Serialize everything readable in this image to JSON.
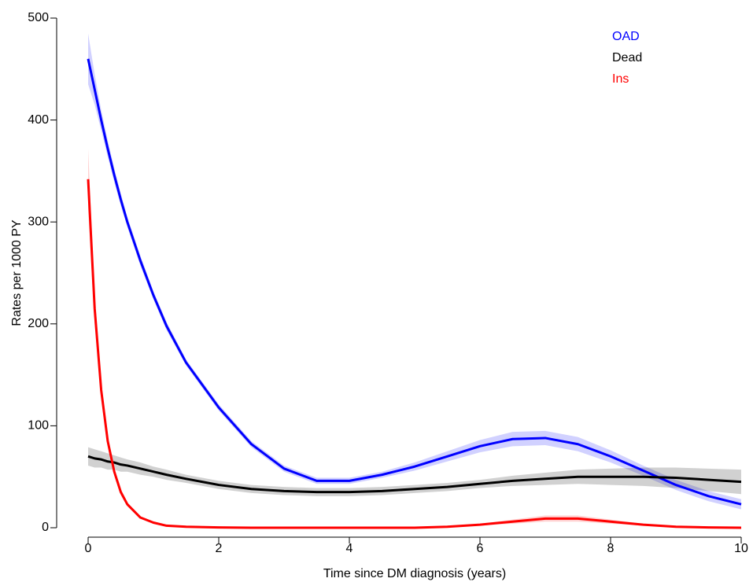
{
  "chart_data": {
    "type": "line",
    "x_label": "Time since DM diagnosis (years)",
    "y_label": "Rates per 1000 PY",
    "x": [
      0,
      0.1,
      0.2,
      0.3,
      0.4,
      0.5,
      0.6,
      0.8,
      1,
      1.2,
      1.5,
      2,
      2.5,
      3,
      3.5,
      4,
      4.5,
      5,
      5.5,
      6,
      6.5,
      7,
      7.5,
      8,
      8.5,
      9,
      9.5,
      10
    ],
    "series": [
      {
        "name": "OAD",
        "color": "#0000ff",
        "values": [
          460,
          430,
          400,
          372,
          346,
          322,
          300,
          262,
          228,
          198,
          162,
          118,
          82,
          58,
          46,
          46,
          52,
          60,
          70,
          80,
          87,
          88,
          82,
          70,
          56,
          42,
          31,
          23
        ],
        "lower": [
          435,
          415,
          390,
          364,
          339,
          316,
          295,
          257,
          224,
          194,
          159,
          115,
          79,
          55,
          43,
          43,
          49,
          56,
          65,
          74,
          80,
          81,
          75,
          64,
          51,
          37,
          26,
          18
        ],
        "upper": [
          485,
          445,
          410,
          380,
          353,
          328,
          305,
          267,
          232,
          202,
          165,
          121,
          85,
          61,
          49,
          49,
          55,
          64,
          75,
          86,
          94,
          95,
          89,
          76,
          61,
          47,
          36,
          28
        ]
      },
      {
        "name": "Dead",
        "color": "#000000",
        "values": [
          70,
          68,
          67,
          65,
          64,
          62,
          61,
          58,
          55,
          52,
          48,
          42,
          38,
          36,
          35,
          35,
          36,
          38,
          40,
          43,
          46,
          48,
          50,
          50,
          50,
          49,
          47,
          45
        ],
        "lower": [
          61,
          59,
          59,
          57,
          57,
          55,
          55,
          52,
          50,
          47,
          44,
          38,
          34,
          32,
          31,
          31,
          32,
          34,
          36,
          39,
          41,
          42,
          43,
          42,
          41,
          39,
          36,
          33
        ],
        "upper": [
          79,
          77,
          75,
          73,
          71,
          69,
          67,
          64,
          60,
          57,
          52,
          46,
          42,
          40,
          39,
          39,
          40,
          42,
          44,
          47,
          51,
          54,
          57,
          58,
          59,
          59,
          58,
          57
        ]
      },
      {
        "name": "Ins",
        "color": "#ff0000",
        "values": [
          342,
          215,
          135,
          85,
          55,
          35,
          23,
          10,
          5,
          2,
          1,
          0.3,
          0,
          0,
          0,
          0,
          0,
          0,
          1,
          3,
          6,
          9,
          9,
          6,
          3,
          1,
          0.3,
          0
        ],
        "lower": [
          312,
          200,
          127,
          80,
          51,
          32,
          21,
          9,
          4,
          1,
          0.5,
          0.1,
          0,
          0,
          0,
          0,
          0,
          0,
          0.5,
          2,
          4,
          6,
          6,
          4,
          2,
          0.5,
          0.1,
          0
        ],
        "upper": [
          372,
          230,
          143,
          90,
          59,
          38,
          25,
          11,
          6,
          3,
          1.5,
          0.5,
          0,
          0,
          0,
          0,
          0,
          0,
          1.5,
          4,
          8,
          12,
          12,
          8,
          4,
          1.5,
          0.5,
          0
        ]
      }
    ],
    "xlim": [
      0,
      10
    ],
    "xticks": [
      0,
      2,
      4,
      6,
      8,
      10
    ],
    "ylim": [
      0,
      500
    ],
    "yticks": [
      0,
      100,
      200,
      300,
      400,
      500
    ],
    "legend": "top-right",
    "grid": false
  }
}
